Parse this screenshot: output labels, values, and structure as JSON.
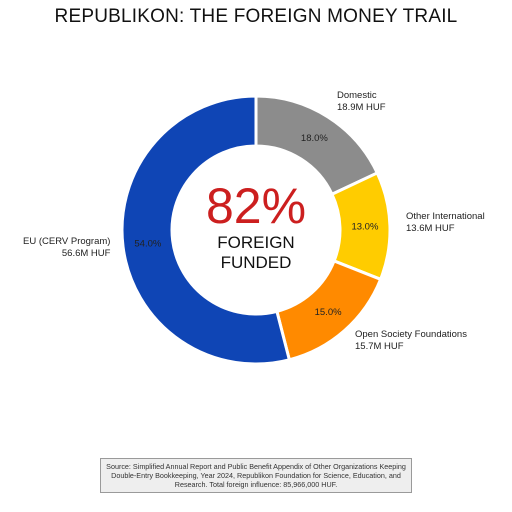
{
  "chart_data": {
    "type": "pie",
    "title": "REPUBLIKON: THE FOREIGN MONEY TRAIL",
    "donut": true,
    "center": {
      "value": "82%",
      "line1": "FOREIGN",
      "line2": "FUNDED"
    },
    "slices": [
      {
        "label": "Domestic",
        "amount": "18.9M HUF",
        "percent": 18.0,
        "percent_label": "18.0%",
        "color": "#8c8c8c"
      },
      {
        "label": "Other International",
        "amount": "13.6M HUF",
        "percent": 13.0,
        "percent_label": "13.0%",
        "color": "#ffcc00"
      },
      {
        "label": "Open Society Foundations",
        "amount": "15.7M HUF",
        "percent": 15.0,
        "percent_label": "15.0%",
        "color": "#ff8a00"
      },
      {
        "label": "EU (CERV Program)",
        "amount": "56.6M HUF",
        "percent": 54.0,
        "percent_label": "54.0%",
        "color": "#0f45b5"
      }
    ],
    "source": "Source: Simplified Annual Report and Public Benefit Appendix of Other Organizations Keeping Double-Entry Bookkeeping, Year 2024, Republikon Foundation for Science, Education, and Research. Total foreign influence: 85,966,000 HUF."
  }
}
